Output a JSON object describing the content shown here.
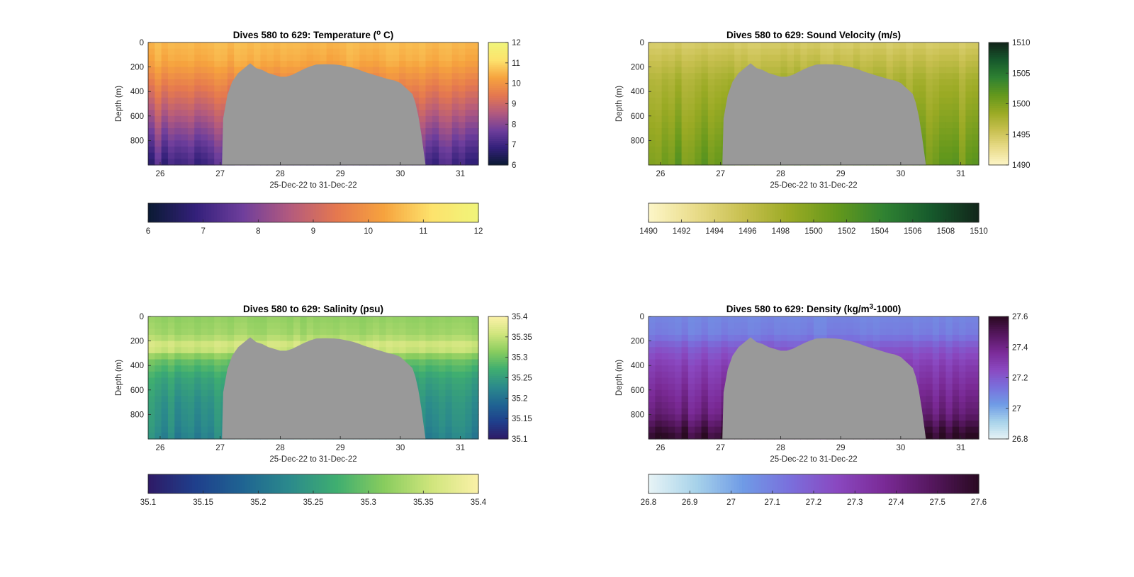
{
  "figure": {
    "colors": {
      "background": "#ffffff",
      "seafloor_mask": "#999999"
    }
  },
  "chart_data": [
    {
      "type": "heatmap",
      "title": "Dives 580 to 629: Temperature (° C)",
      "title_pre": "Dives 580 to 629: Temperature (",
      "title_sup": "o",
      "title_post": " C)",
      "xlabel": "25-Dec-22 to 31-Dec-22",
      "ylabel": "Depth (m)",
      "x_ticks": [
        "26",
        "27",
        "28",
        "29",
        "30",
        "31"
      ],
      "x_tick_values": [
        26,
        27,
        28,
        29,
        30,
        31
      ],
      "xlim": [
        25.8,
        31.3
      ],
      "y_ticks": [
        "0",
        "200",
        "400",
        "600",
        "800"
      ],
      "y_tick_values": [
        0,
        200,
        400,
        600,
        800
      ],
      "ylim": [
        0,
        1000
      ],
      "colorbar_ticks": [
        "6",
        "7",
        "8",
        "9",
        "10",
        "11",
        "12"
      ],
      "colorbar_values": [
        6,
        7,
        8,
        9,
        10,
        11,
        12
      ],
      "clim": [
        6,
        12
      ],
      "colormap": [
        "#0a1a33",
        "#33207a",
        "#6e3e9c",
        "#b35a7e",
        "#e5784f",
        "#f6a33e",
        "#fde26c",
        "#f0f57a"
      ],
      "colormap_reversed": false,
      "profile_values": [
        [
          0,
          10.6
        ],
        [
          150,
          10.4
        ],
        [
          300,
          9.8
        ],
        [
          500,
          9.0
        ],
        [
          700,
          8.2
        ],
        [
          900,
          7.4
        ],
        [
          1000,
          7.1
        ]
      ],
      "grid": false,
      "colorbars": [
        "right",
        "bottom"
      ]
    },
    {
      "type": "heatmap",
      "title": "Dives 580 to 629: Sound Velocity (m/s)",
      "title_pre": "Dives 580 to 629: Sound Velocity (m/s)",
      "title_sup": "",
      "title_post": "",
      "xlabel": "25-Dec-22 to 31-Dec-22",
      "ylabel": "Depth (m)",
      "x_ticks": [
        "26",
        "27",
        "28",
        "29",
        "30",
        "31"
      ],
      "x_tick_values": [
        26,
        27,
        28,
        29,
        30,
        31
      ],
      "xlim": [
        25.8,
        31.3
      ],
      "y_ticks": [
        "0",
        "200",
        "400",
        "600",
        "800"
      ],
      "y_tick_values": [
        0,
        200,
        400,
        600,
        800
      ],
      "ylim": [
        0,
        1000
      ],
      "colorbar_ticks": [
        "1490",
        "1492",
        "1494",
        "1496",
        "1498",
        "1500",
        "1502",
        "1504",
        "1506",
        "1508",
        "1510"
      ],
      "colorbar_ticks_right": [
        "1490",
        "1495",
        "1500",
        "1505",
        "1510"
      ],
      "colorbar_values": [
        1490,
        1492,
        1494,
        1496,
        1498,
        1500,
        1502,
        1504,
        1506,
        1508,
        1510
      ],
      "colorbar_values_right": [
        1490,
        1495,
        1500,
        1505,
        1510
      ],
      "clim": [
        1490,
        1510
      ],
      "colormap": [
        "#fdf6c8",
        "#e9dc8a",
        "#c8c050",
        "#9aaa24",
        "#64981c",
        "#2f8232",
        "#16592c",
        "#12251a"
      ],
      "colormap_reversed": false,
      "profile_values": [
        [
          0,
          1494.5
        ],
        [
          150,
          1496.0
        ],
        [
          300,
          1497.5
        ],
        [
          500,
          1498.5
        ],
        [
          700,
          1499.5
        ],
        [
          900,
          1500.6
        ],
        [
          1000,
          1501.0
        ]
      ],
      "grid": false,
      "colorbars": [
        "right",
        "bottom"
      ]
    },
    {
      "type": "heatmap",
      "title": "Dives 580 to 629: Salinity (psu)",
      "title_pre": "Dives 580 to 629: Salinity (psu)",
      "title_sup": "",
      "title_post": "",
      "xlabel": "25-Dec-22 to 31-Dec-22",
      "ylabel": "Depth (m)",
      "x_ticks": [
        "26",
        "27",
        "28",
        "29",
        "30",
        "31"
      ],
      "x_tick_values": [
        26,
        27,
        28,
        29,
        30,
        31
      ],
      "xlim": [
        25.8,
        31.3
      ],
      "y_ticks": [
        "0",
        "200",
        "400",
        "600",
        "800"
      ],
      "y_tick_values": [
        0,
        200,
        400,
        600,
        800
      ],
      "ylim": [
        0,
        1000
      ],
      "colorbar_ticks": [
        "35.1",
        "35.15",
        "35.2",
        "35.25",
        "35.3",
        "35.35",
        "35.4"
      ],
      "colorbar_values": [
        35.1,
        35.15,
        35.2,
        35.25,
        35.3,
        35.35,
        35.4
      ],
      "clim": [
        35.1,
        35.4
      ],
      "colormap": [
        "#2e1a66",
        "#1f3f8c",
        "#1f6492",
        "#2b8a8c",
        "#3fae70",
        "#88cc5e",
        "#cfe57c",
        "#fbf1a8"
      ],
      "colormap_reversed": false,
      "profile_values": [
        [
          0,
          35.32
        ],
        [
          150,
          35.33
        ],
        [
          250,
          35.37
        ],
        [
          350,
          35.3
        ],
        [
          500,
          35.26
        ],
        [
          700,
          35.24
        ],
        [
          900,
          35.23
        ],
        [
          1000,
          35.22
        ]
      ],
      "grid": false,
      "colorbars": [
        "right",
        "bottom"
      ]
    },
    {
      "type": "heatmap",
      "title": "Dives 580 to 629: Density (kg/m³-1000)",
      "title_pre": "Dives 580 to 629: Density (kg/m",
      "title_sup": "3",
      "title_post": "-1000)",
      "xlabel": "25-Dec-22 to 31-Dec-22",
      "ylabel": "Depth (m)",
      "x_ticks": [
        "26",
        "27",
        "28",
        "29",
        "30",
        "31"
      ],
      "x_tick_values": [
        26,
        27,
        28,
        29,
        30,
        31
      ],
      "xlim": [
        25.8,
        31.3
      ],
      "y_ticks": [
        "0",
        "200",
        "400",
        "600",
        "800"
      ],
      "y_tick_values": [
        0,
        200,
        400,
        600,
        800
      ],
      "ylim": [
        0,
        1000
      ],
      "colorbar_ticks": [
        "26.8",
        "26.9",
        "27",
        "27.1",
        "27.2",
        "27.3",
        "27.4",
        "27.5",
        "27.6"
      ],
      "colorbar_ticks_right": [
        "26.8",
        "27",
        "27.2",
        "27.4",
        "27.6"
      ],
      "colorbar_values": [
        26.8,
        26.9,
        27.0,
        27.1,
        27.2,
        27.3,
        27.4,
        27.5,
        27.6
      ],
      "colorbar_values_right": [
        26.8,
        27.0,
        27.2,
        27.4,
        27.6
      ],
      "clim": [
        26.8,
        27.6
      ],
      "colormap": [
        "#e8f4f6",
        "#a8d3ea",
        "#6f9be6",
        "#7a6fdc",
        "#8a48c0",
        "#7a2a96",
        "#55175e",
        "#2a0a22"
      ],
      "colormap_reversed": false,
      "profile_values": [
        [
          0,
          27.08
        ],
        [
          150,
          27.1
        ],
        [
          250,
          27.2
        ],
        [
          400,
          27.28
        ],
        [
          600,
          27.35
        ],
        [
          800,
          27.42
        ],
        [
          950,
          27.55
        ],
        [
          1000,
          27.58
        ]
      ],
      "grid": false,
      "colorbars": [
        "right",
        "bottom"
      ]
    }
  ],
  "seafloor_mask": {
    "description_source": "gray region with no data (bathymetry) across the middle of each section",
    "profile": [
      [
        27.03,
        1000
      ],
      [
        27.05,
        620
      ],
      [
        27.12,
        430
      ],
      [
        27.2,
        320
      ],
      [
        27.3,
        250
      ],
      [
        27.4,
        210
      ],
      [
        27.5,
        170
      ],
      [
        27.6,
        210
      ],
      [
        27.7,
        225
      ],
      [
        27.8,
        250
      ],
      [
        27.9,
        265
      ],
      [
        28.0,
        280
      ],
      [
        28.1,
        280
      ],
      [
        28.2,
        265
      ],
      [
        28.3,
        240
      ],
      [
        28.4,
        215
      ],
      [
        28.5,
        195
      ],
      [
        28.6,
        180
      ],
      [
        28.75,
        178
      ],
      [
        28.9,
        180
      ],
      [
        29.0,
        185
      ],
      [
        29.1,
        195
      ],
      [
        29.2,
        205
      ],
      [
        29.3,
        220
      ],
      [
        29.4,
        240
      ],
      [
        29.5,
        255
      ],
      [
        29.6,
        270
      ],
      [
        29.7,
        285
      ],
      [
        29.8,
        300
      ],
      [
        29.9,
        310
      ],
      [
        30.0,
        330
      ],
      [
        30.1,
        375
      ],
      [
        30.2,
        420
      ],
      [
        30.25,
        490
      ],
      [
        30.3,
        600
      ],
      [
        30.35,
        750
      ],
      [
        30.42,
        1000
      ]
    ]
  }
}
